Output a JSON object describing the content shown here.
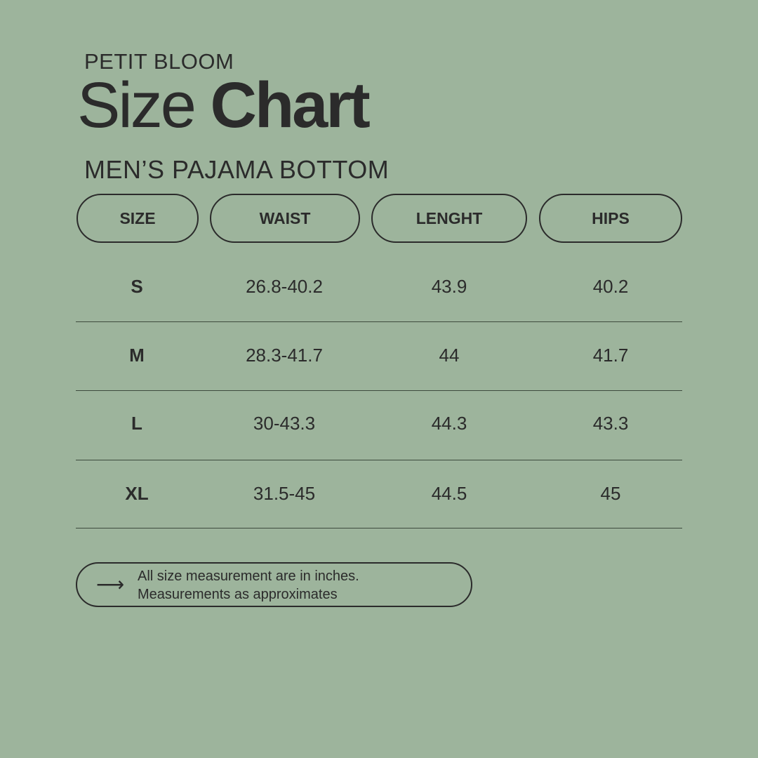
{
  "brand": "PETIT BLOOM",
  "title": {
    "light": "Size",
    "bold": "Chart"
  },
  "subtitle": "MEN’S PAJAMA BOTTOM",
  "columns": [
    "SIZE",
    "WAIST",
    "LENGHT",
    "HIPS"
  ],
  "rows": [
    [
      "S",
      "26.8-40.2",
      "43.9",
      "40.2"
    ],
    [
      "M",
      "28.3-41.7",
      "44",
      "41.7"
    ],
    [
      "L",
      "30-43.3",
      "44.3",
      "43.3"
    ],
    [
      "XL",
      "31.5-45",
      "44.5",
      "45"
    ]
  ],
  "note": {
    "icon": "arrow-right-icon",
    "line1": "All size measurement are in inches.",
    "line2": "Measurements as approximates"
  },
  "colors": {
    "background": "#9db49c",
    "text": "#2b2b2b"
  }
}
